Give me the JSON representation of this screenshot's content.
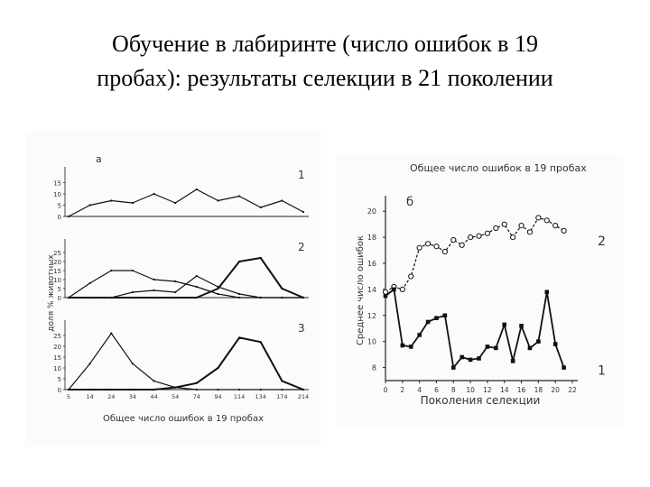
{
  "slide": {
    "title_line1": "Обучение в лабиринте (число ошибок в 19",
    "title_line2": "пробах): результаты селекции в 21 поколении"
  },
  "chart_data": [
    {
      "type": "line",
      "panel_label": "а",
      "ylabel": "доля % животных",
      "xlabel": "Общее число ошибок в 19 пробах",
      "x_ticks": [
        "5",
        "14",
        "24",
        "34",
        "44",
        "54",
        "74",
        "94",
        "114",
        "134",
        "174",
        "214"
      ],
      "subplots": [
        {
          "label": "1",
          "y_ticks": [
            "15",
            "10",
            "5",
            "0"
          ],
          "ylim": [
            0,
            20
          ],
          "series": [
            {
              "values": [
                0,
                5,
                7,
                6,
                10,
                6,
                12,
                7,
                9,
                4,
                7,
                2
              ]
            }
          ]
        },
        {
          "label": "2",
          "y_ticks": [
            "25",
            "20",
            "15",
            "10",
            "5",
            "0"
          ],
          "ylim": [
            0,
            30
          ],
          "series": [
            {
              "values": [
                0,
                8,
                15,
                15,
                10,
                9,
                6,
                2,
                0,
                0,
                0,
                0
              ]
            },
            {
              "values": [
                0,
                0,
                0,
                3,
                4,
                3,
                12,
                6,
                2,
                0,
                0,
                0
              ]
            },
            {
              "values": [
                0,
                0,
                0,
                0,
                0,
                0,
                0,
                5,
                20,
                22,
                5,
                0
              ]
            }
          ]
        },
        {
          "label": "3",
          "y_ticks": [
            "25",
            "20",
            "15",
            "10",
            "5",
            "0"
          ],
          "ylim": [
            0,
            30
          ],
          "series": [
            {
              "values": [
                0,
                12,
                26,
                12,
                4,
                1,
                0,
                0,
                0,
                0,
                0,
                0
              ]
            },
            {
              "values": [
                0,
                0,
                0,
                0,
                0,
                1,
                3,
                10,
                24,
                22,
                4,
                0
              ]
            }
          ]
        }
      ]
    },
    {
      "type": "line",
      "panel_label": "б",
      "title": "Общее число ошибок в 19 пробах",
      "ylabel": "Среднее число ошибок",
      "xlabel": "Поколения селекции",
      "x_ticks": [
        "0",
        "2",
        "4",
        "6",
        "8",
        "10",
        "12",
        "14",
        "16",
        "18",
        "20",
        "22"
      ],
      "y_ticks": [
        "20",
        "18",
        "16",
        "14",
        "12",
        "10",
        "8"
      ],
      "xlim": [
        0,
        22
      ],
      "ylim": [
        7,
        20.5
      ],
      "series": [
        {
          "name": "2",
          "x": [
            0,
            1,
            2,
            3,
            4,
            5,
            6,
            7,
            8,
            9,
            10,
            11,
            12,
            13,
            14,
            15,
            16,
            17,
            18,
            19,
            20,
            21
          ],
          "values": [
            13.8,
            14.2,
            14.0,
            15.0,
            17.2,
            17.5,
            17.3,
            16.9,
            17.8,
            17.4,
            18.0,
            18.1,
            18.3,
            18.7,
            19.0,
            18.0,
            18.9,
            18.4,
            19.5,
            19.3,
            18.9,
            18.5
          ]
        },
        {
          "name": "1",
          "x": [
            0,
            1,
            2,
            3,
            4,
            5,
            6,
            7,
            8,
            9,
            10,
            11,
            12,
            13,
            14,
            15,
            16,
            17,
            18,
            19,
            20,
            21
          ],
          "values": [
            13.5,
            14.0,
            9.7,
            9.6,
            10.5,
            11.5,
            11.8,
            12.0,
            8.0,
            8.8,
            8.6,
            8.7,
            9.6,
            9.5,
            11.3,
            8.5,
            11.2,
            9.5,
            10.0,
            13.8,
            9.8,
            8.0
          ]
        }
      ]
    }
  ]
}
